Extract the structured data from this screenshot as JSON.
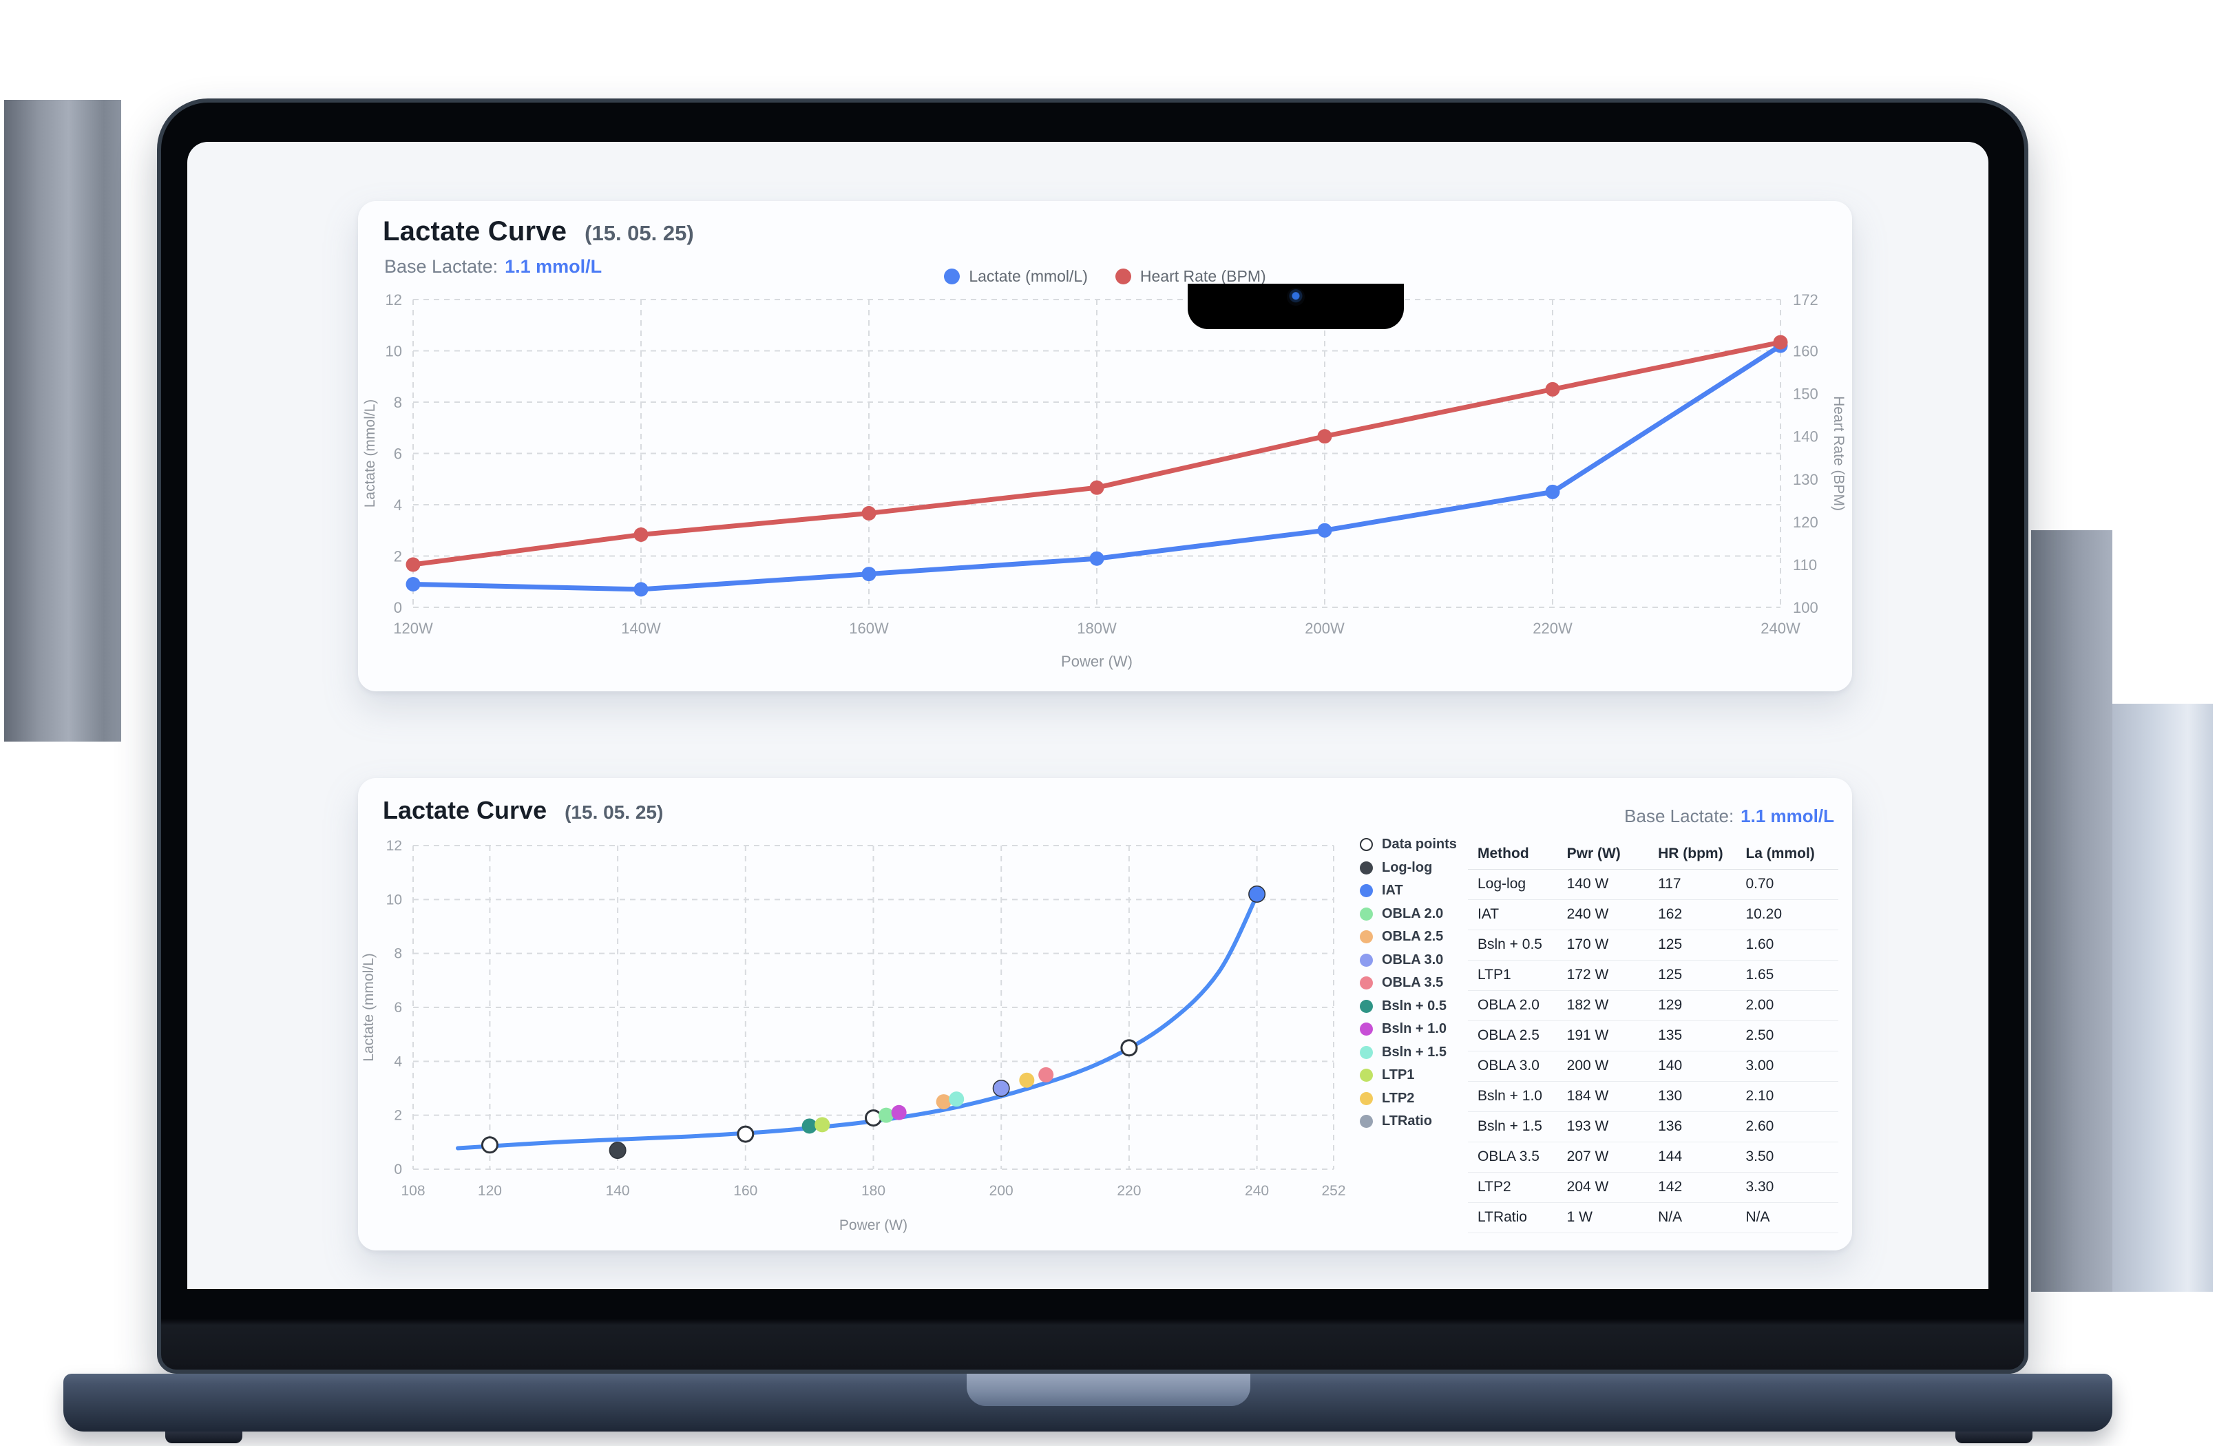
{
  "app": {
    "top_card": {
      "title": "Lactate Curve",
      "date": "(15. 05. 25)",
      "base_lactate_label": "Base Lactate:",
      "base_lactate_value": "1.1 mmol/L",
      "legend": [
        {
          "label": "Lactate (mmol/L)",
          "color": "#4d82f3"
        },
        {
          "label": "Heart Rate (BPM)",
          "color": "#d45b5b"
        }
      ]
    },
    "bottom_card": {
      "title": "Lactate Curve",
      "date": "(15. 05. 25)",
      "base_lactate_label": "Base Lactate:",
      "base_lactate_value": "1.1 mmol/L",
      "legend": [
        {
          "label": "Data points",
          "color": "#ffffff",
          "open": true
        },
        {
          "label": "Log-log",
          "color": "#3f454d"
        },
        {
          "label": "IAT",
          "color": "#4d82f3"
        },
        {
          "label": "OBLA 2.0",
          "color": "#8ce6a4"
        },
        {
          "label": "OBLA 2.5",
          "color": "#f3b577"
        },
        {
          "label": "OBLA 3.0",
          "color": "#8c9cf0"
        },
        {
          "label": "OBLA 3.5",
          "color": "#ee8390"
        },
        {
          "label": "Bsln + 0.5",
          "color": "#2e9486"
        },
        {
          "label": "Bsln + 1.0",
          "color": "#c74fd6"
        },
        {
          "label": "Bsln + 1.5",
          "color": "#8fecd9"
        },
        {
          "label": "LTP1",
          "color": "#c0e264"
        },
        {
          "label": "LTP2",
          "color": "#f3ca5b"
        },
        {
          "label": "LTRatio",
          "color": "#97a2b2"
        }
      ],
      "table": {
        "headers": [
          "Method",
          "Pwr (W)",
          "HR (bpm)",
          "La (mmol)"
        ],
        "rows": [
          [
            "Log-log",
            "140 W",
            "117",
            "0.70"
          ],
          [
            "IAT",
            "240 W",
            "162",
            "10.20"
          ],
          [
            "Bsln + 0.5",
            "170 W",
            "125",
            "1.60"
          ],
          [
            "LTP1",
            "172 W",
            "125",
            "1.65"
          ],
          [
            "OBLA 2.0",
            "182 W",
            "129",
            "2.00"
          ],
          [
            "OBLA 2.5",
            "191 W",
            "135",
            "2.50"
          ],
          [
            "OBLA 3.0",
            "200 W",
            "140",
            "3.00"
          ],
          [
            "Bsln + 1.0",
            "184 W",
            "130",
            "2.10"
          ],
          [
            "Bsln + 1.5",
            "193 W",
            "136",
            "2.60"
          ],
          [
            "OBLA 3.5",
            "207 W",
            "144",
            "3.50"
          ],
          [
            "LTP2",
            "204 W",
            "142",
            "3.30"
          ],
          [
            "LTRatio",
            "1 W",
            "N/A",
            "N/A"
          ]
        ]
      }
    }
  },
  "chart_data": [
    {
      "type": "line",
      "title": "Lactate Curve (15. 05. 25)",
      "xlabel": "Power (W)",
      "x": [
        120,
        140,
        160,
        180,
        200,
        220,
        240
      ],
      "x_tick_labels": [
        "120W",
        "140W",
        "160W",
        "180W",
        "200W",
        "220W",
        "240W"
      ],
      "series": [
        {
          "name": "Lactate (mmol/L)",
          "axis": "left",
          "color": "#4d82f3",
          "values": [
            0.9,
            0.7,
            1.3,
            1.9,
            3.0,
            4.5,
            10.2
          ]
        },
        {
          "name": "Heart Rate (BPM)",
          "axis": "right",
          "color": "#d45b5b",
          "values": [
            110,
            117,
            122,
            128,
            140,
            151,
            162
          ]
        }
      ],
      "left_axis": {
        "label": "Lactate (mmol/L)",
        "min": 0,
        "max": 12,
        "ticks": [
          0,
          2,
          4,
          6,
          8,
          10,
          12
        ]
      },
      "right_axis": {
        "label": "Heart Rate (BPM)",
        "min": 100,
        "max": 172,
        "ticks": [
          100,
          110,
          120,
          130,
          140,
          150,
          160,
          172
        ]
      },
      "grid": true,
      "legend_position": "top"
    },
    {
      "type": "scatter",
      "title": "Lactate Curve (15. 05. 25)",
      "xlabel": "Power (W)",
      "ylabel": "Lactate (mmol/L)",
      "xlim": [
        108,
        252
      ],
      "x_ticks": [
        108,
        120,
        140,
        160,
        180,
        200,
        220,
        240,
        252
      ],
      "ylim": [
        0,
        12
      ],
      "y_ticks": [
        0,
        2,
        4,
        6,
        8,
        10,
        12
      ],
      "grid": true,
      "fit_curve": {
        "color": "#4c8cf5",
        "points": [
          [
            115,
            0.78
          ],
          [
            132,
            1.02
          ],
          [
            150,
            1.2
          ],
          [
            165,
            1.42
          ],
          [
            180,
            1.78
          ],
          [
            193,
            2.3
          ],
          [
            205,
            3.05
          ],
          [
            216,
            4.0
          ],
          [
            226,
            5.4
          ],
          [
            234,
            7.3
          ],
          [
            240,
            10.15
          ]
        ]
      },
      "groups": [
        {
          "name": "Data points",
          "color": "#ffffff",
          "stroke": "#2f343b",
          "coords": [
            [
              120,
              0.9
            ],
            [
              140,
              0.7
            ],
            [
              160,
              1.3
            ],
            [
              180,
              1.9
            ],
            [
              200,
              3.0
            ],
            [
              220,
              4.5
            ],
            [
              240,
              10.2
            ]
          ]
        },
        {
          "name": "Log-log",
          "color": "#3f454d",
          "coords": [
            [
              140,
              0.7
            ]
          ]
        },
        {
          "name": "IAT",
          "color": "#4d82f3",
          "coords": [
            [
              240,
              10.2
            ]
          ]
        },
        {
          "name": "OBLA 2.0",
          "color": "#8ce6a4",
          "coords": [
            [
              182,
              2.0
            ]
          ]
        },
        {
          "name": "OBLA 2.5",
          "color": "#f3b577",
          "coords": [
            [
              191,
              2.5
            ]
          ]
        },
        {
          "name": "OBLA 3.0",
          "color": "#8c9cf0",
          "coords": [
            [
              200,
              3.0
            ]
          ]
        },
        {
          "name": "OBLA 3.5",
          "color": "#ee8390",
          "coords": [
            [
              207,
              3.5
            ]
          ]
        },
        {
          "name": "Bsln + 0.5",
          "color": "#2e9486",
          "coords": [
            [
              170,
              1.6
            ]
          ]
        },
        {
          "name": "Bsln + 1.0",
          "color": "#c74fd6",
          "coords": [
            [
              184,
              2.1
            ]
          ]
        },
        {
          "name": "Bsln + 1.5",
          "color": "#8fecd9",
          "coords": [
            [
              193,
              2.6
            ]
          ]
        },
        {
          "name": "LTP1",
          "color": "#c0e264",
          "coords": [
            [
              172,
              1.65
            ]
          ]
        },
        {
          "name": "LTP2",
          "color": "#f3ca5b",
          "coords": [
            [
              204,
              3.3
            ]
          ]
        },
        {
          "name": "LTRatio",
          "color": "#97a2b2",
          "coords": []
        }
      ]
    }
  ]
}
